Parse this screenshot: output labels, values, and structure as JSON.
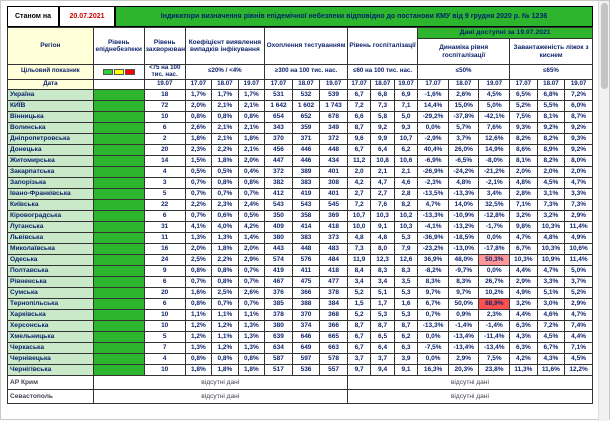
{
  "meta": {
    "as_of_label": "Станом на",
    "as_of_date": "20.07.2021",
    "title": "Індикатори визначення рівнів епідемічної небезпеки відповідно до постанови КМУ від 9 грудня 2020 р. № 1236",
    "data_available_label": "Дані доступні за 19.07.2021"
  },
  "header": {
    "region": "Регіон",
    "target_label": "Цільовий показник",
    "date_label": "Дата",
    "groups": [
      {
        "label": "Рівень епіднебезпеки",
        "target": "",
        "dates": []
      },
      {
        "label": "Рівень захворюваності",
        "target": "<75 на 100 тис. нас.",
        "dates": [
          "19.07"
        ]
      },
      {
        "label": "Коефіцієнт виявлення випадків інфікування",
        "target": "≤20% / <4%",
        "dates": [
          "17.07",
          "18.07",
          "19.07"
        ]
      },
      {
        "label": "Охоплення тестуванням",
        "target": "≥300 на 100 тис. нас.",
        "dates": [
          "17.07",
          "18.07",
          "19.07"
        ]
      },
      {
        "label": "Рівень госпіталізації",
        "target": "≤60 на 100 тис. нас.",
        "dates": [
          "17.07",
          "18.07",
          "19.07"
        ]
      },
      {
        "label": "Динаміка рівня госпіталізації",
        "target": "≤50%",
        "dates": [
          "17.07",
          "18.07",
          "19.07"
        ]
      },
      {
        "label": "Завантаженість ліжок з киснем",
        "target": "≤65%",
        "dates": [
          "17.07",
          "18.07",
          "19.07"
        ]
      }
    ]
  },
  "rows": [
    {
      "name": "Україна",
      "values": [
        "18",
        "1,7%",
        "1,7%",
        "1,7%",
        "531",
        "532",
        "539",
        "6,7",
        "6,8",
        "6,9",
        "-1,6%",
        "2,6%",
        "4,5%",
        "6,5%",
        "6,8%",
        "7,2%"
      ],
      "highlights": []
    },
    {
      "name": "КИЇВ",
      "values": [
        "72",
        "2,0%",
        "2,1%",
        "2,1%",
        "1 642",
        "1 602",
        "1 743",
        "7,2",
        "7,3",
        "7,1",
        "14,4%",
        "15,0%",
        "5,0%",
        "5,2%",
        "5,5%",
        "6,0%"
      ],
      "highlights": []
    },
    {
      "name": "Вінницька",
      "values": [
        "10",
        "0,8%",
        "0,8%",
        "0,8%",
        "654",
        "652",
        "678",
        "6,6",
        "5,8",
        "5,0",
        "-29,2%",
        "-37,8%",
        "-42,1%",
        "7,5%",
        "8,1%",
        "8,7%"
      ],
      "highlights": []
    },
    {
      "name": "Волинська",
      "values": [
        "6",
        "2,6%",
        "2,1%",
        "2,1%",
        "343",
        "359",
        "349",
        "8,7",
        "9,2",
        "9,3",
        "0,0%",
        "5,7%",
        "7,6%",
        "9,3%",
        "9,2%",
        "9,2%"
      ],
      "highlights": []
    },
    {
      "name": "Дніпропетровська",
      "values": [
        "2",
        "1,8%",
        "2,1%",
        "1,8%",
        "370",
        "371",
        "372",
        "9,6",
        "9,9",
        "10,7",
        "-2,9%",
        "3,7%",
        "12,6%",
        "8,2%",
        "8,2%",
        "9,3%"
      ],
      "highlights": []
    },
    {
      "name": "Донецька",
      "values": [
        "20",
        "2,3%",
        "2,2%",
        "2,1%",
        "456",
        "446",
        "448",
        "6,7",
        "6,4",
        "6,2",
        "40,4%",
        "26,0%",
        "14,9%",
        "8,6%",
        "8,9%",
        "9,2%"
      ],
      "highlights": []
    },
    {
      "name": "Житомирська",
      "values": [
        "14",
        "1,5%",
        "1,8%",
        "2,0%",
        "447",
        "446",
        "434",
        "11,2",
        "10,8",
        "10,6",
        "-6,9%",
        "-6,5%",
        "-8,0%",
        "8,1%",
        "8,2%",
        "8,0%"
      ],
      "highlights": []
    },
    {
      "name": "Закарпатська",
      "values": [
        "4",
        "0,5%",
        "0,5%",
        "0,4%",
        "372",
        "389",
        "401",
        "2,0",
        "2,1",
        "2,1",
        "-26,9%",
        "-24,2%",
        "-21,2%",
        "2,0%",
        "2,0%",
        "2,0%"
      ],
      "highlights": []
    },
    {
      "name": "Запорізька",
      "values": [
        "3",
        "0,7%",
        "0,8%",
        "0,8%",
        "382",
        "383",
        "308",
        "4,2",
        "4,7",
        "4,6",
        "-2,3%",
        "4,8%",
        "-2,1%",
        "4,8%",
        "4,5%",
        "4,7%"
      ],
      "highlights": []
    },
    {
      "name": "Івано-Франківська",
      "values": [
        "5",
        "0,7%",
        "0,7%",
        "0,7%",
        "412",
        "419",
        "401",
        "2,7",
        "2,7",
        "2,8",
        "-13,5%",
        "-13,3%",
        "3,4%",
        "2,8%",
        "3,1%",
        "3,3%"
      ],
      "highlights": []
    },
    {
      "name": "Київська",
      "values": [
        "22",
        "2,2%",
        "2,3%",
        "2,4%",
        "543",
        "543",
        "545",
        "7,2",
        "7,6",
        "8,2",
        "4,7%",
        "14,0%",
        "32,5%",
        "7,1%",
        "7,3%",
        "7,3%"
      ],
      "highlights": []
    },
    {
      "name": "Кіровоградська",
      "values": [
        "6",
        "0,7%",
        "0,6%",
        "0,5%",
        "350",
        "358",
        "369",
        "10,7",
        "10,3",
        "10,2",
        "-13,3%",
        "-10,9%",
        "-12,8%",
        "3,2%",
        "3,2%",
        "2,9%"
      ],
      "highlights": []
    },
    {
      "name": "Луганська",
      "values": [
        "31",
        "4,1%",
        "4,0%",
        "4,2%",
        "409",
        "414",
        "418",
        "10,0",
        "9,1",
        "10,3",
        "-4,1%",
        "-13,2%",
        "-1,7%",
        "9,8%",
        "10,3%",
        "11,4%"
      ],
      "highlights": []
    },
    {
      "name": "Львівська",
      "values": [
        "11",
        "1,3%",
        "1,3%",
        "1,4%",
        "380",
        "383",
        "373",
        "4,8",
        "4,8",
        "5,3",
        "-36,9%",
        "-18,5%",
        "0,0%",
        "4,7%",
        "4,8%",
        "4,9%"
      ],
      "highlights": []
    },
    {
      "name": "Миколаївська",
      "values": [
        "16",
        "2,0%",
        "1,8%",
        "2,0%",
        "443",
        "448",
        "483",
        "7,3",
        "8,0",
        "7,9",
        "-23,2%",
        "-13,0%",
        "-17,8%",
        "6,7%",
        "10,3%",
        "10,6%"
      ],
      "highlights": []
    },
    {
      "name": "Одеська",
      "values": [
        "24",
        "2,5%",
        "2,2%",
        "2,9%",
        "574",
        "576",
        "484",
        "11,9",
        "12,3",
        "12,6",
        "36,9%",
        "48,0%",
        "50,3%",
        "10,3%",
        "10,9%",
        "11,4%"
      ],
      "highlights": [
        {
          "index": 12,
          "color": "#ff9999"
        }
      ]
    },
    {
      "name": "Полтавська",
      "values": [
        "9",
        "0,8%",
        "0,8%",
        "0,7%",
        "419",
        "411",
        "418",
        "8,4",
        "8,3",
        "8,3",
        "-8,2%",
        "-9,7%",
        "0,0%",
        "4,4%",
        "4,7%",
        "5,0%"
      ],
      "highlights": []
    },
    {
      "name": "Рівненська",
      "values": [
        "6",
        "0,7%",
        "0,8%",
        "0,7%",
        "467",
        "475",
        "477",
        "3,4",
        "3,4",
        "3,5",
        "8,3%",
        "8,3%",
        "26,7%",
        "2,9%",
        "3,3%",
        "3,7%"
      ],
      "highlights": []
    },
    {
      "name": "Сумська",
      "values": [
        "20",
        "1,6%",
        "2,5%",
        "2,6%",
        "376",
        "366",
        "378",
        "5,2",
        "5,1",
        "5,3",
        "9,7%",
        "9,7%",
        "10,2%",
        "4,9%",
        "5,1%",
        "5,2%"
      ],
      "highlights": []
    },
    {
      "name": "Тернопільська",
      "values": [
        "6",
        "0,8%",
        "0,7%",
        "0,7%",
        "385",
        "388",
        "384",
        "1,5",
        "1,7",
        "1,6",
        "6,7%",
        "50,0%",
        "88,9%",
        "3,2%",
        "3,0%",
        "2,9%"
      ],
      "highlights": [
        {
          "index": 12,
          "color": "#ff5050"
        }
      ]
    },
    {
      "name": "Харківська",
      "values": [
        "10",
        "1,1%",
        "1,1%",
        "1,1%",
        "378",
        "370",
        "368",
        "5,2",
        "5,3",
        "5,3",
        "0,7%",
        "0,9%",
        "2,3%",
        "4,4%",
        "4,6%",
        "4,7%"
      ],
      "highlights": []
    },
    {
      "name": "Херсонська",
      "values": [
        "10",
        "1,2%",
        "1,2%",
        "1,3%",
        "380",
        "374",
        "366",
        "8,7",
        "8,7",
        "8,7",
        "-13,3%",
        "-1,4%",
        "-1,4%",
        "6,3%",
        "7,2%",
        "7,4%"
      ],
      "highlights": []
    },
    {
      "name": "Хмельницька",
      "values": [
        "5",
        "1,2%",
        "1,1%",
        "1,3%",
        "639",
        "646",
        "665",
        "6,7",
        "6,5",
        "6,2",
        "0,0%",
        "-13,4%",
        "-11,4%",
        "4,3%",
        "4,5%",
        "4,4%"
      ],
      "highlights": []
    },
    {
      "name": "Черкаська",
      "values": [
        "7",
        "1,3%",
        "1,2%",
        "1,3%",
        "634",
        "649",
        "663",
        "6,7",
        "6,4",
        "6,3",
        "-7,5%",
        "-13,4%",
        "-13,4%",
        "6,3%",
        "6,7%",
        "7,1%"
      ],
      "highlights": []
    },
    {
      "name": "Чернівецька",
      "values": [
        "4",
        "0,8%",
        "0,8%",
        "0,8%",
        "587",
        "597",
        "578",
        "3,7",
        "3,7",
        "3,9",
        "0,0%",
        "2,9%",
        "7,5%",
        "4,2%",
        "4,3%",
        "4,5%"
      ],
      "highlights": []
    },
    {
      "name": "Чернігівська",
      "values": [
        "10",
        "1,8%",
        "1,8%",
        "1,8%",
        "517",
        "536",
        "557",
        "9,7",
        "9,4",
        "9,1",
        "16,3%",
        "20,3%",
        "23,8%",
        "11,3%",
        "11,6%",
        "12,2%"
      ],
      "highlights": []
    }
  ],
  "no_data_rows": [
    {
      "name": "АР Крим",
      "text": "відсутні дані"
    },
    {
      "name": "Севастополь",
      "text": "відсутні дані"
    }
  ],
  "colors": {
    "title_green": "#2db52d",
    "title_text": "#00246b",
    "asof_date_red": "#cc0000",
    "level_green": "#2eb52e",
    "region_bg": "#c9e9c9",
    "label_bg": "#ffffd9",
    "legend": [
      "#33cc33",
      "#ffff00",
      "#ff0000"
    ]
  }
}
